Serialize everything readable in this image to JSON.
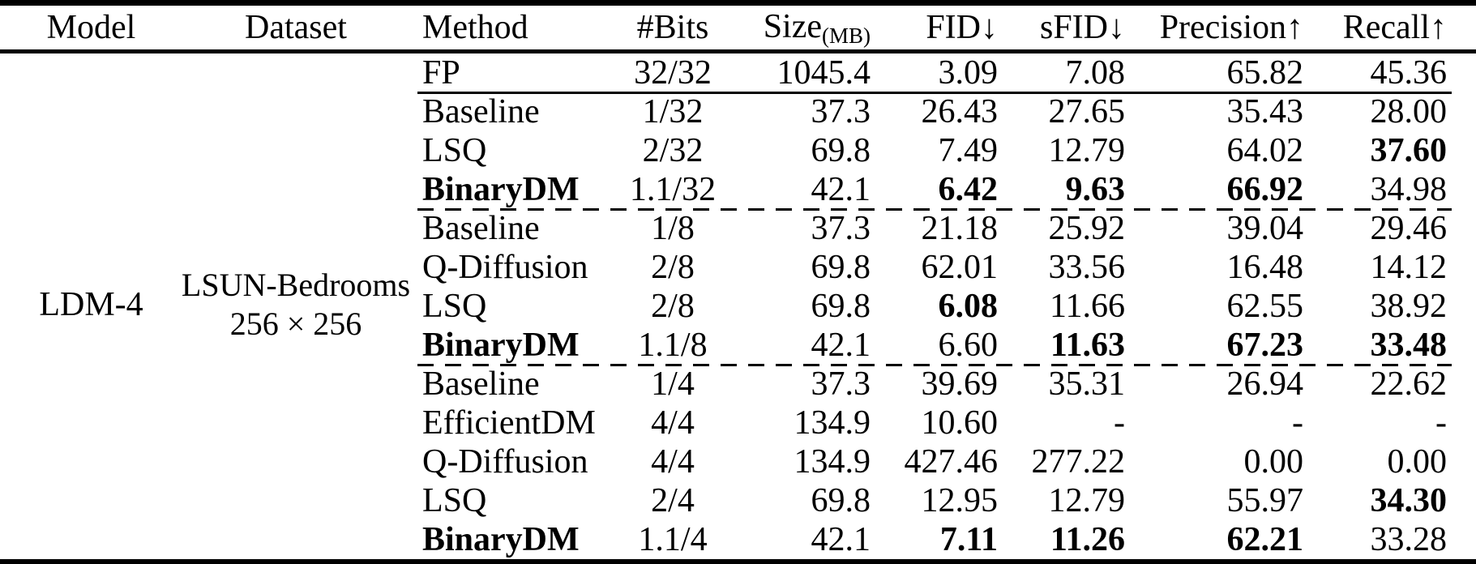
{
  "colors": {
    "text": "#000000",
    "background": "#ffffff"
  },
  "table": {
    "headers": {
      "model": "Model",
      "dataset": "Dataset",
      "method": "Method",
      "bits": "#Bits",
      "size": "Size",
      "size_sub": "(MB)",
      "fid": "FID↓",
      "sfid": "sFID↓",
      "precision": "Precision↑",
      "recall": "Recall↑"
    },
    "model": "LDM-4",
    "dataset": {
      "line1": "LSUN-Bedrooms",
      "line2": "256 × 256"
    },
    "rows": [
      {
        "method": "FP",
        "bits": "32/32",
        "size": "1045.4",
        "fid": "3.09",
        "sfid": "7.08",
        "precision": "65.82",
        "recall": "45.36",
        "bold": []
      },
      {
        "method": "Baseline",
        "bits": "1/32",
        "size": "37.3",
        "fid": "26.43",
        "sfid": "27.65",
        "precision": "35.43",
        "recall": "28.00",
        "bold": []
      },
      {
        "method": "LSQ",
        "bits": "2/32",
        "size": "69.8",
        "fid": "7.49",
        "sfid": "12.79",
        "precision": "64.02",
        "recall": "37.60",
        "bold": [
          "recall"
        ]
      },
      {
        "method": "BinaryDM",
        "bits": "1.1/32",
        "size": "42.1",
        "fid": "6.42",
        "sfid": "9.63",
        "precision": "66.92",
        "recall": "34.98",
        "bold": [
          "method",
          "fid",
          "sfid",
          "precision"
        ]
      },
      {
        "method": "Baseline",
        "bits": "1/8",
        "size": "37.3",
        "fid": "21.18",
        "sfid": "25.92",
        "precision": "39.04",
        "recall": "29.46",
        "bold": []
      },
      {
        "method": "Q-Diffusion",
        "bits": "2/8",
        "size": "69.8",
        "fid": "62.01",
        "sfid": "33.56",
        "precision": "16.48",
        "recall": "14.12",
        "bold": []
      },
      {
        "method": "LSQ",
        "bits": "2/8",
        "size": "69.8",
        "fid": "6.08",
        "sfid": "11.66",
        "precision": "62.55",
        "recall": "38.92",
        "bold": [
          "fid"
        ]
      },
      {
        "method": "BinaryDM",
        "bits": "1.1/8",
        "size": "42.1",
        "fid": "6.60",
        "sfid": "11.63",
        "precision": "67.23",
        "recall": "33.48",
        "bold": [
          "method",
          "sfid",
          "precision",
          "recall"
        ]
      },
      {
        "method": "Baseline",
        "bits": "1/4",
        "size": "37.3",
        "fid": "39.69",
        "sfid": "35.31",
        "precision": "26.94",
        "recall": "22.62",
        "bold": []
      },
      {
        "method": "EfficientDM",
        "bits": "4/4",
        "size": "134.9",
        "fid": "10.60",
        "sfid": "-",
        "precision": "-",
        "recall": "-",
        "bold": []
      },
      {
        "method": "Q-Diffusion",
        "bits": "4/4",
        "size": "134.9",
        "fid": "427.46",
        "sfid": "277.22",
        "precision": "0.00",
        "recall": "0.00",
        "bold": []
      },
      {
        "method": "LSQ",
        "bits": "2/4",
        "size": "69.8",
        "fid": "12.95",
        "sfid": "12.79",
        "precision": "55.97",
        "recall": "34.30",
        "bold": [
          "recall"
        ]
      },
      {
        "method": "BinaryDM",
        "bits": "1.1/4",
        "size": "42.1",
        "fid": "7.11",
        "sfid": "11.26",
        "precision": "62.21",
        "recall": "33.28",
        "bold": [
          "method",
          "fid",
          "sfid",
          "precision"
        ]
      }
    ]
  }
}
